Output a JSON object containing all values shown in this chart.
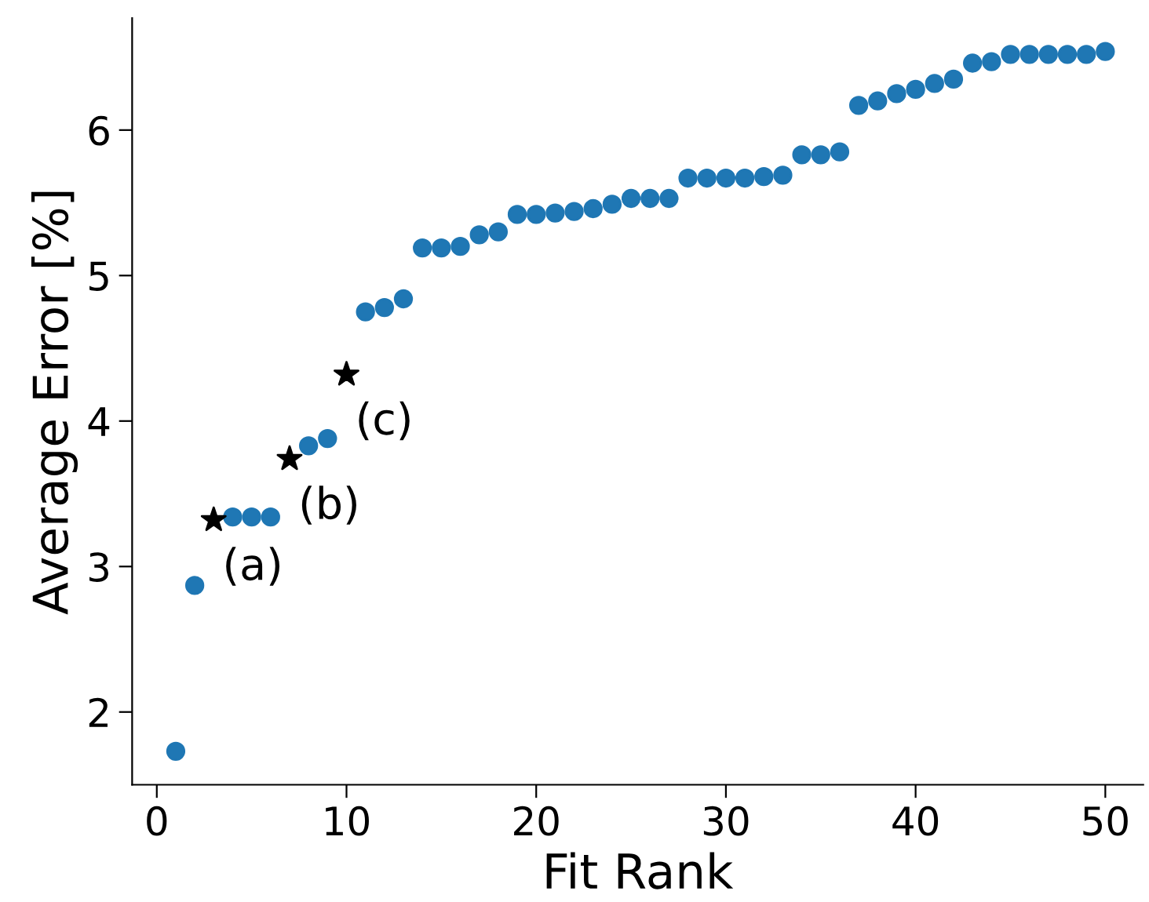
{
  "chart_data": {
    "type": "scatter",
    "xlabel": "Fit Rank",
    "ylabel": "Average Error [%]",
    "xlim": [
      -1.3,
      52
    ],
    "ylim": [
      1.5,
      6.77
    ],
    "xticks": [
      0,
      10,
      20,
      30,
      40,
      50
    ],
    "yticks": [
      2,
      3,
      4,
      5,
      6
    ],
    "grid": false,
    "legend": false,
    "series": [
      {
        "color": "#1f77b4",
        "marker": "circle",
        "x": [
          1,
          2,
          4,
          5,
          6,
          8,
          9,
          11,
          12,
          13,
          14,
          15,
          16,
          17,
          18,
          19,
          20,
          21,
          22,
          23,
          24,
          25,
          26,
          27,
          28,
          29,
          30,
          31,
          32,
          33,
          34,
          35,
          36,
          37,
          38,
          39,
          40,
          41,
          42,
          43,
          44,
          45,
          46,
          47,
          48,
          49,
          50
        ],
        "values": [
          1.73,
          2.87,
          3.34,
          3.34,
          3.34,
          3.83,
          3.88,
          4.75,
          4.78,
          4.84,
          5.19,
          5.19,
          5.2,
          5.28,
          5.3,
          5.42,
          5.42,
          5.43,
          5.44,
          5.46,
          5.49,
          5.53,
          5.53,
          5.53,
          5.67,
          5.67,
          5.67,
          5.67,
          5.68,
          5.69,
          5.83,
          5.83,
          5.85,
          6.17,
          6.2,
          6.25,
          6.28,
          6.32,
          6.35,
          6.46,
          6.47,
          6.52,
          6.52,
          6.52,
          6.52,
          6.52,
          6.54
        ]
      },
      {
        "color": "#000000",
        "marker": "star",
        "x": [
          3,
          7,
          10
        ],
        "values": [
          3.32,
          3.74,
          4.32
        ]
      }
    ],
    "annotations": [
      {
        "text": "(a)",
        "x": 3,
        "y": 3.32
      },
      {
        "text": "(b)",
        "x": 7,
        "y": 3.74
      },
      {
        "text": "(c)",
        "x": 10,
        "y": 4.32
      }
    ]
  }
}
